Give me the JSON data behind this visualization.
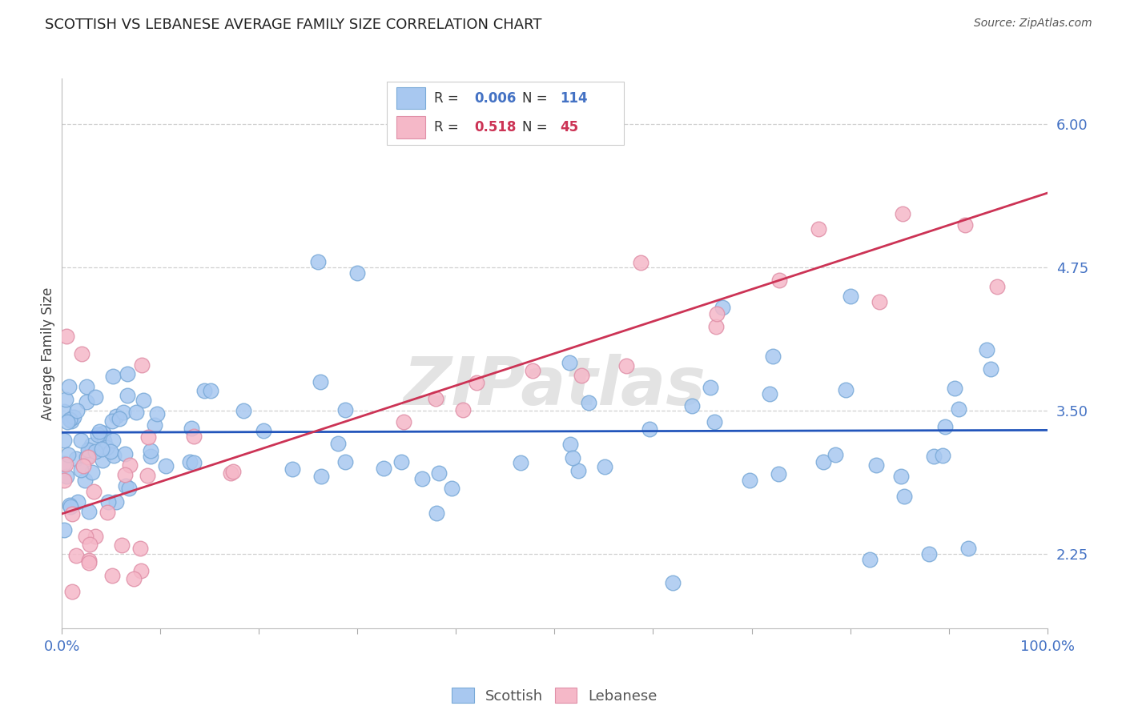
{
  "title": "SCOTTISH VS LEBANESE AVERAGE FAMILY SIZE CORRELATION CHART",
  "source": "Source: ZipAtlas.com",
  "ylabel": "Average Family Size",
  "ytick_values": [
    2.25,
    3.5,
    4.75,
    6.0
  ],
  "ytick_labels": [
    "2.25",
    "3.50",
    "4.75",
    "6.00"
  ],
  "xlim": [
    0.0,
    100.0
  ],
  "ylim": [
    1.6,
    6.4
  ],
  "scottish_color": "#a8c8f0",
  "scottish_edge": "#7aaad8",
  "lebanese_color": "#f5b8c8",
  "lebanese_edge": "#e090a8",
  "scottish_line_color": "#2255bb",
  "lebanese_line_color": "#cc3355",
  "R_scottish": "0.006",
  "N_scottish": "114",
  "R_lebanese": "0.518",
  "N_lebanese": "45",
  "label_color": "#4472c4",
  "source_color": "#555555",
  "title_color": "#222222",
  "grid_color": "#d0d0d0",
  "bg_color": "#ffffff",
  "plot_bg": "#ffffff",
  "watermark_text": "ZIPatlas",
  "scottish_line_intercept": 3.32,
  "scottish_line_slope": 2e-05,
  "lebanese_line_intercept": 2.6,
  "lebanese_line_slope": 0.028
}
